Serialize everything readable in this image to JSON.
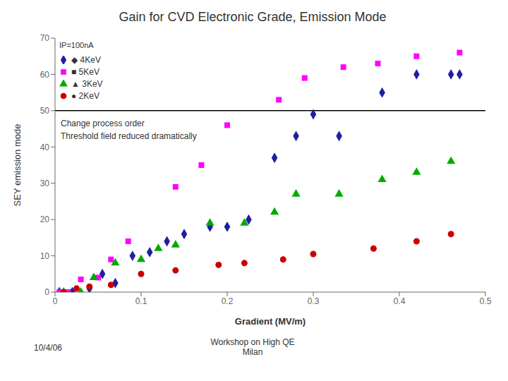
{
  "chart_data": {
    "type": "scatter",
    "title": "Gain for CVD Electronic Grade, Emission Mode",
    "xlabel": "Gradient (MV/m)",
    "ylabel": "SEY emission mode",
    "xlim": [
      0,
      0.5
    ],
    "ylim": [
      0,
      70
    ],
    "xticks": [
      0,
      0.1,
      0.2,
      0.3,
      0.4,
      0.5
    ],
    "yticks": [
      0,
      10,
      20,
      30,
      40,
      50,
      60,
      70
    ],
    "hline_y": 50,
    "grid": false,
    "legend": "upper left",
    "annotations": [
      "IP=100nA",
      "Change process order",
      "Threshold field reduced dramatically",
      "10/4/06",
      "Workshop on High QE\nMilan"
    ],
    "series": [
      {
        "name": "◆ 4KeV",
        "color": "#1F1FA0",
        "marker": "diamond",
        "x": [
          0.005,
          0.02,
          0.04,
          0.055,
          0.07,
          0.09,
          0.11,
          0.13,
          0.15,
          0.18,
          0.2,
          0.225,
          0.255,
          0.28,
          0.3,
          0.33,
          0.38,
          0.42,
          0.46,
          0.47
        ],
        "values": [
          0,
          0,
          1,
          5,
          2.5,
          10,
          11,
          14,
          16,
          18,
          18,
          20,
          37,
          43,
          49,
          43,
          55,
          60,
          60,
          60
        ]
      },
      {
        "name": "■ 5KeV",
        "color": "#FF00FF",
        "marker": "square",
        "x": [
          0.005,
          0.015,
          0.03,
          0.05,
          0.065,
          0.085,
          0.14,
          0.17,
          0.2,
          0.26,
          0.29,
          0.335,
          0.375,
          0.42,
          0.47
        ],
        "values": [
          0,
          0,
          3.5,
          4,
          9,
          14,
          29,
          35,
          46,
          53,
          59,
          62,
          63,
          65,
          66
        ]
      },
      {
        "name": "▲ 3KeV",
        "color": "#00AA00",
        "marker": "triangle",
        "x": [
          0.01,
          0.03,
          0.045,
          0.07,
          0.1,
          0.12,
          0.14,
          0.18,
          0.22,
          0.255,
          0.28,
          0.33,
          0.38,
          0.42,
          0.46
        ],
        "values": [
          0,
          0,
          4,
          8,
          9,
          12,
          13,
          19,
          19,
          22,
          27,
          27,
          31,
          33,
          36
        ]
      },
      {
        "name": "● 2KeV",
        "color": "#CC0000",
        "marker": "circle",
        "x": [
          0.01,
          0.025,
          0.04,
          0.065,
          0.1,
          0.14,
          0.19,
          0.22,
          0.265,
          0.3,
          0.37,
          0.42,
          0.46
        ],
        "values": [
          0,
          1,
          1.5,
          2,
          5,
          6,
          7.5,
          8,
          9,
          10.5,
          12,
          14,
          16
        ]
      }
    ]
  }
}
